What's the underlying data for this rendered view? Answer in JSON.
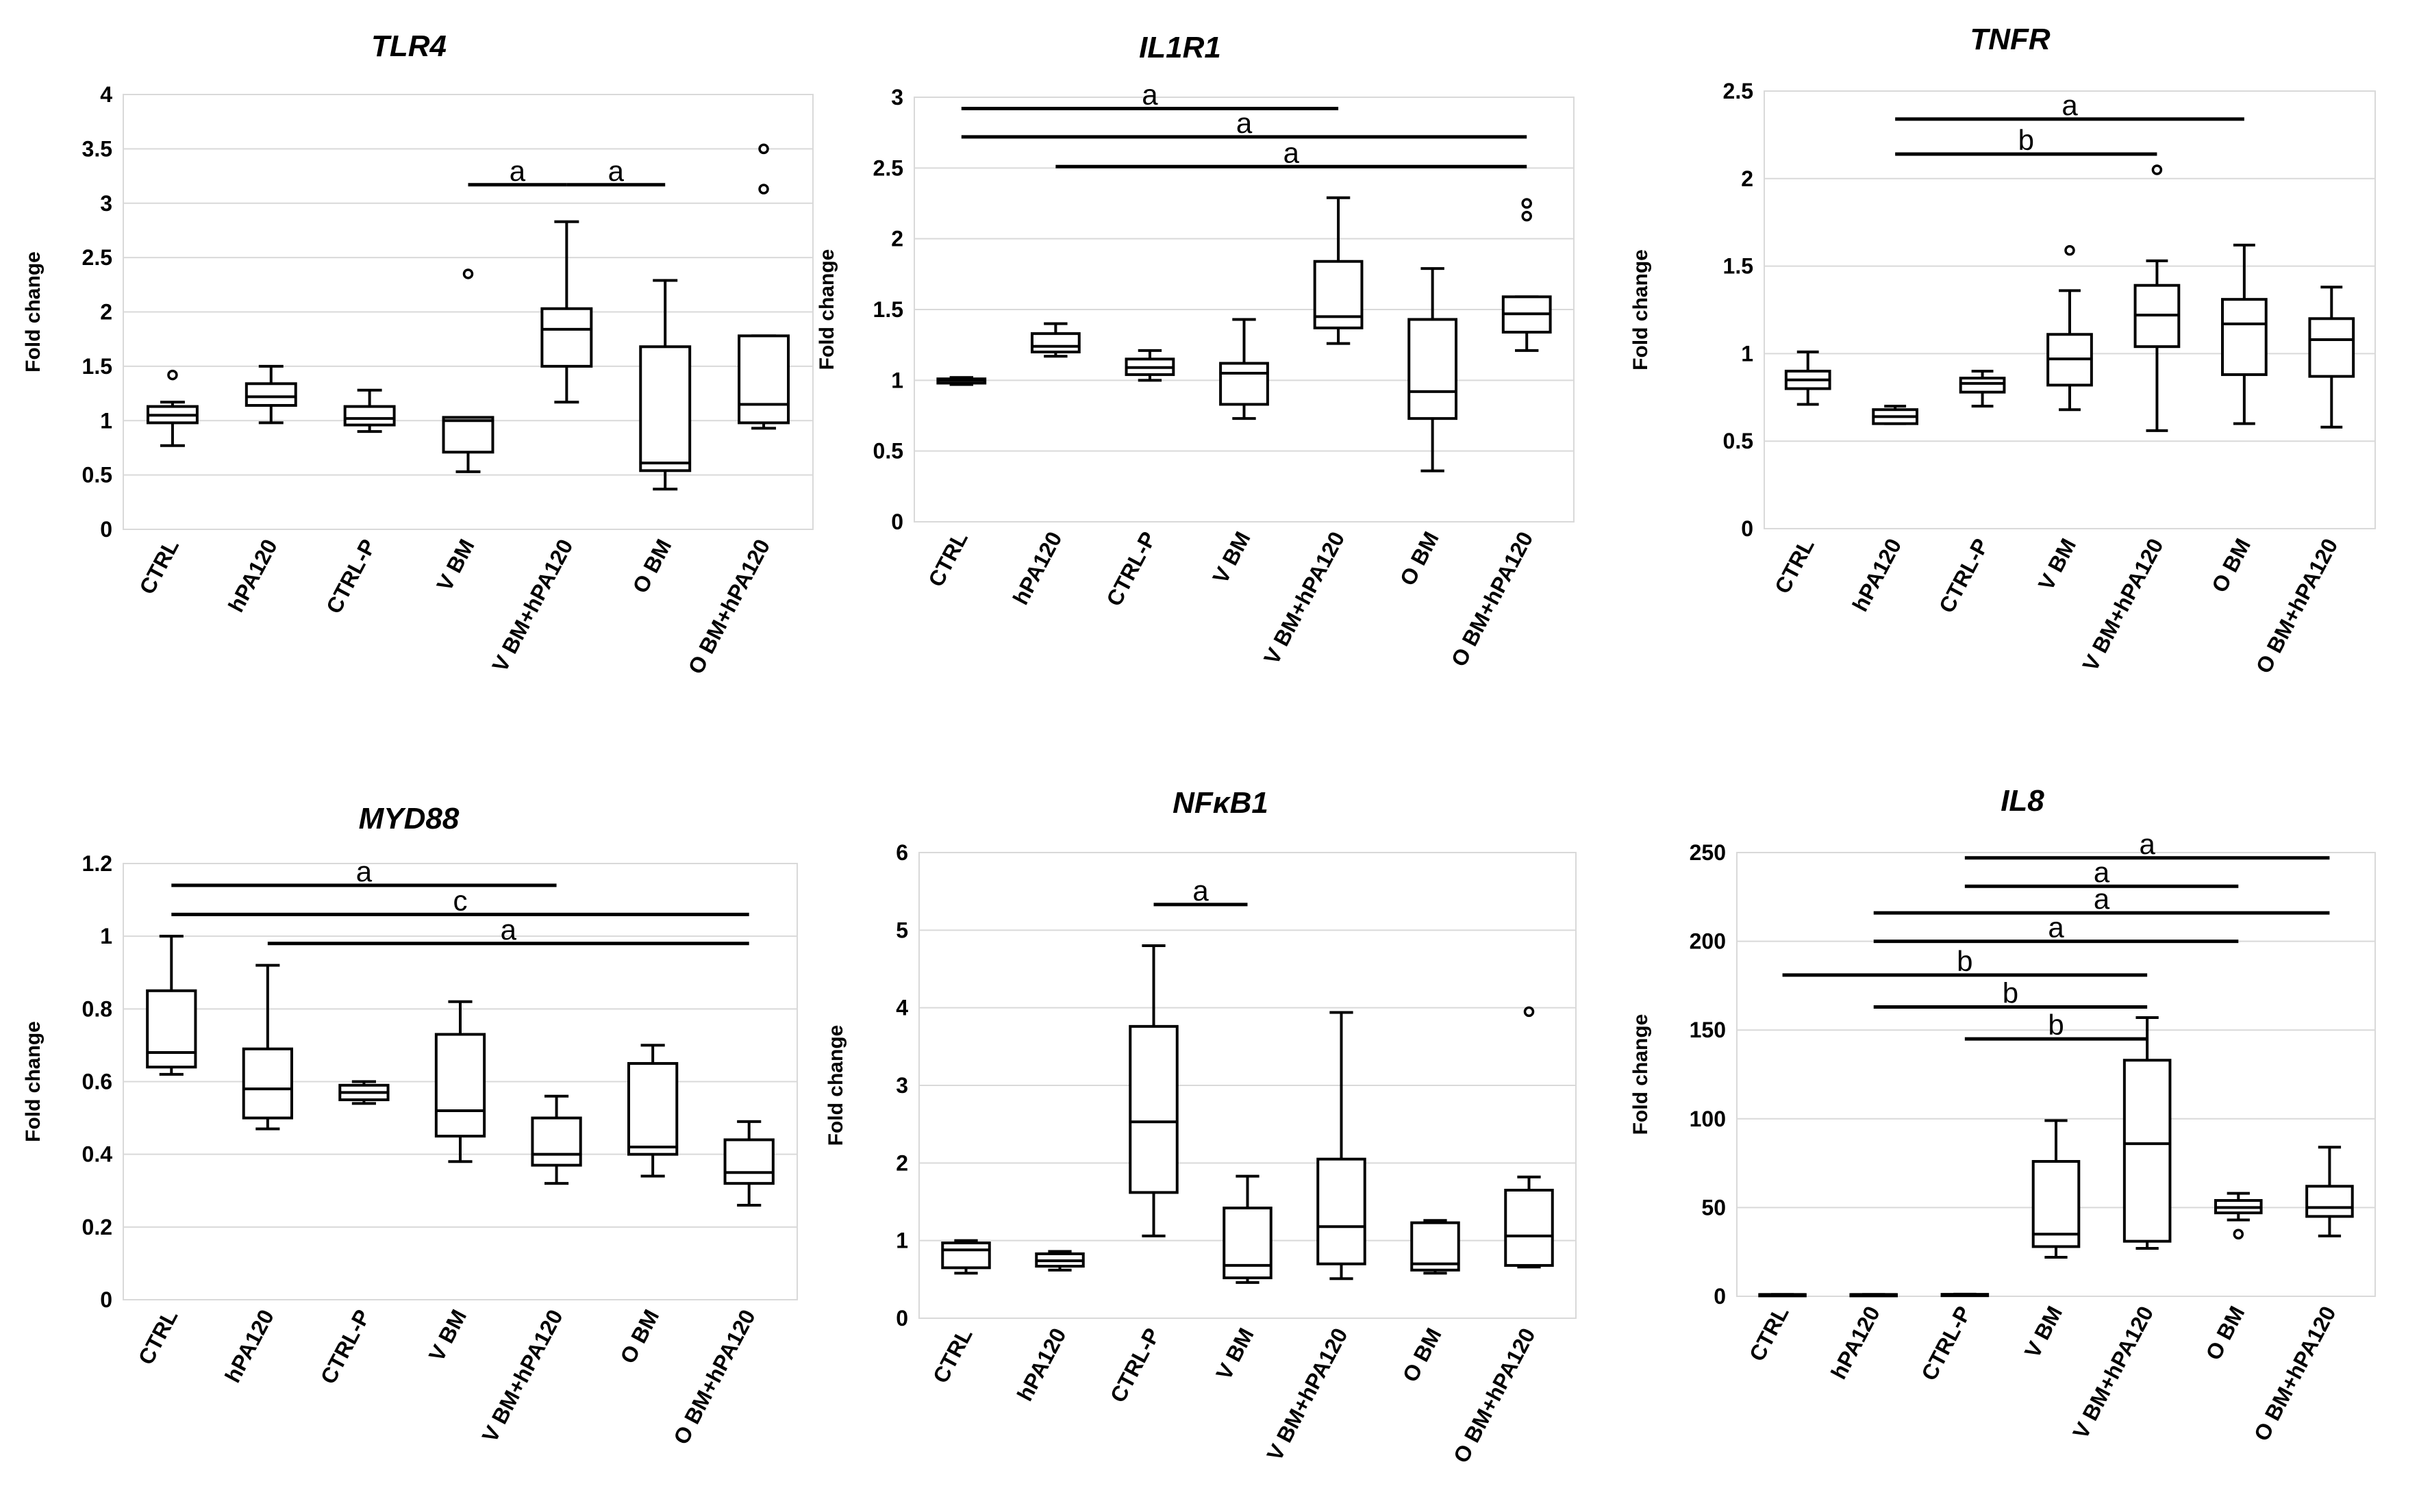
{
  "chart_data": [
    {
      "type": "box",
      "title": "TLR4",
      "ylabel": "Fold change",
      "ylim": [
        0,
        4
      ],
      "yticks": [
        "0",
        "0.5",
        "1",
        "1.5",
        "2",
        "2.5",
        "3",
        "3.5",
        "4"
      ],
      "categories": [
        "CTRL",
        "hPA120",
        "CTRL-P",
        "V BM",
        "V BM+hPA120",
        "O BM",
        "O BM+hPA120"
      ],
      "boxes": [
        {
          "min": 0.77,
          "q1": 0.98,
          "median": 1.05,
          "q3": 1.13,
          "max": 1.17,
          "outliers": [
            1.42
          ]
        },
        {
          "min": 0.98,
          "q1": 1.14,
          "median": 1.22,
          "q3": 1.34,
          "max": 1.5,
          "outliers": []
        },
        {
          "min": 0.9,
          "q1": 0.96,
          "median": 1.02,
          "q3": 1.13,
          "max": 1.28,
          "outliers": []
        },
        {
          "min": 0.53,
          "q1": 0.71,
          "median": 1.0,
          "q3": 1.03,
          "max": 1.03,
          "outliers": [
            2.35
          ]
        },
        {
          "min": 1.17,
          "q1": 1.5,
          "median": 1.84,
          "q3": 2.03,
          "max": 2.83,
          "outliers": []
        },
        {
          "min": 0.37,
          "q1": 0.54,
          "median": 0.61,
          "q3": 1.68,
          "max": 2.29,
          "outliers": []
        },
        {
          "min": 0.93,
          "q1": 0.98,
          "median": 1.15,
          "q3": 1.78,
          "max": 1.78,
          "outliers": [
            3.13,
            3.5
          ]
        }
      ],
      "significance": [
        {
          "from": 3,
          "to": 4,
          "label": "a",
          "y": 3.17
        },
        {
          "from": 4,
          "to": 5,
          "label": "a",
          "y": 3.17
        }
      ]
    },
    {
      "type": "box",
      "title": "IL1R1",
      "ylabel": "Fold change",
      "ylim": [
        0,
        3
      ],
      "yticks": [
        "0",
        "0.5",
        "1",
        "1.5",
        "2",
        "2.5",
        "3"
      ],
      "categories": [
        "CTRL",
        "hPA120",
        "CTRL-P",
        "V BM",
        "V BM+hPA120",
        "O BM",
        "O BM+hPA120"
      ],
      "boxes": [
        {
          "min": 0.97,
          "q1": 0.98,
          "median": 1.0,
          "q3": 1.01,
          "max": 1.02,
          "outliers": []
        },
        {
          "min": 1.17,
          "q1": 1.2,
          "median": 1.24,
          "q3": 1.33,
          "max": 1.4,
          "outliers": []
        },
        {
          "min": 1.0,
          "q1": 1.04,
          "median": 1.09,
          "q3": 1.15,
          "max": 1.21,
          "outliers": []
        },
        {
          "min": 0.73,
          "q1": 0.83,
          "median": 1.05,
          "q3": 1.12,
          "max": 1.43,
          "outliers": []
        },
        {
          "min": 1.26,
          "q1": 1.37,
          "median": 1.45,
          "q3": 1.84,
          "max": 2.29,
          "outliers": []
        },
        {
          "min": 0.36,
          "q1": 0.73,
          "median": 0.92,
          "q3": 1.43,
          "max": 1.79,
          "outliers": []
        },
        {
          "min": 1.21,
          "q1": 1.34,
          "median": 1.47,
          "q3": 1.59,
          "max": 1.59,
          "outliers": [
            2.16,
            2.25
          ]
        }
      ],
      "significance": [
        {
          "from": 0,
          "to": 4,
          "label": "a",
          "y": 2.92
        },
        {
          "from": 0,
          "to": 6,
          "label": "a",
          "y": 2.72
        },
        {
          "from": 1,
          "to": 6,
          "label": "a",
          "y": 2.51
        }
      ]
    },
    {
      "type": "box",
      "title": "TNFR",
      "ylabel": "Fold change",
      "ylim": [
        0,
        2.5
      ],
      "yticks": [
        "0",
        "0.5",
        "1",
        "1.5",
        "2",
        "2.5"
      ],
      "categories": [
        "CTRL",
        "hPA120",
        "CTRL-P",
        "V BM",
        "V BM+hPA120",
        "O BM",
        "O BM+hPA120"
      ],
      "boxes": [
        {
          "min": 0.71,
          "q1": 0.8,
          "median": 0.85,
          "q3": 0.9,
          "max": 1.01,
          "outliers": []
        },
        {
          "min": 0.6,
          "q1": 0.6,
          "median": 0.64,
          "q3": 0.68,
          "max": 0.7,
          "outliers": []
        },
        {
          "min": 0.7,
          "q1": 0.78,
          "median": 0.83,
          "q3": 0.86,
          "max": 0.9,
          "outliers": []
        },
        {
          "min": 0.68,
          "q1": 0.82,
          "median": 0.97,
          "q3": 1.11,
          "max": 1.36,
          "outliers": [
            1.59
          ]
        },
        {
          "min": 0.56,
          "q1": 1.04,
          "median": 1.22,
          "q3": 1.39,
          "max": 1.53,
          "outliers": [
            2.05
          ]
        },
        {
          "min": 0.6,
          "q1": 0.88,
          "median": 1.17,
          "q3": 1.31,
          "max": 1.62,
          "outliers": []
        },
        {
          "min": 0.58,
          "q1": 0.87,
          "median": 1.08,
          "q3": 1.2,
          "max": 1.38,
          "outliers": []
        }
      ],
      "significance": [
        {
          "from": 1,
          "to": 5,
          "label": "a",
          "y": 2.34
        },
        {
          "from": 1,
          "to": 4,
          "label": "b",
          "y": 2.14
        }
      ]
    },
    {
      "type": "box",
      "title": "MYD88",
      "ylabel": "Fold change",
      "ylim": [
        0,
        1.2
      ],
      "yticks": [
        "0",
        "0.2",
        "0.4",
        "0.6",
        "0.8",
        "1",
        "1.2"
      ],
      "categories": [
        "CTRL",
        "hPA120",
        "CTRL-P",
        "V BM",
        "V BM+hPA120",
        "O BM",
        "O BM+hPA120"
      ],
      "boxes": [
        {
          "min": 0.62,
          "q1": 0.64,
          "median": 0.68,
          "q3": 0.85,
          "max": 1.0,
          "outliers": []
        },
        {
          "min": 0.47,
          "q1": 0.5,
          "median": 0.58,
          "q3": 0.69,
          "max": 0.92,
          "outliers": []
        },
        {
          "min": 0.54,
          "q1": 0.55,
          "median": 0.57,
          "q3": 0.59,
          "max": 0.6,
          "outliers": []
        },
        {
          "min": 0.38,
          "q1": 0.45,
          "median": 0.52,
          "q3": 0.73,
          "max": 0.82,
          "outliers": []
        },
        {
          "min": 0.32,
          "q1": 0.37,
          "median": 0.4,
          "q3": 0.5,
          "max": 0.56,
          "outliers": []
        },
        {
          "min": 0.34,
          "q1": 0.4,
          "median": 0.42,
          "q3": 0.65,
          "max": 0.7,
          "outliers": []
        },
        {
          "min": 0.26,
          "q1": 0.32,
          "median": 0.35,
          "q3": 0.44,
          "max": 0.49,
          "outliers": []
        }
      ],
      "significance": [
        {
          "from": 0,
          "to": 4,
          "label": "a",
          "y": 1.14
        },
        {
          "from": 0,
          "to": 6,
          "label": "c",
          "y": 1.06
        },
        {
          "from": 1,
          "to": 6,
          "label": "a",
          "y": 0.98
        }
      ]
    },
    {
      "type": "box",
      "title": "NFκB1",
      "ylabel": "Fold change",
      "ylim": [
        0,
        6
      ],
      "yticks": [
        "0",
        "1",
        "2",
        "3",
        "4",
        "5",
        "6"
      ],
      "categories": [
        "CTRL",
        "hPA120",
        "CTRL-P",
        "V BM",
        "V BM+hPA120",
        "O BM",
        "O BM+hPA120"
      ],
      "boxes": [
        {
          "min": 0.58,
          "q1": 0.65,
          "median": 0.88,
          "q3": 0.97,
          "max": 1.0,
          "outliers": []
        },
        {
          "min": 0.62,
          "q1": 0.67,
          "median": 0.74,
          "q3": 0.83,
          "max": 0.86,
          "outliers": []
        },
        {
          "min": 1.06,
          "q1": 1.62,
          "median": 2.53,
          "q3": 3.76,
          "max": 4.8,
          "outliers": []
        },
        {
          "min": 0.46,
          "q1": 0.52,
          "median": 0.68,
          "q3": 1.42,
          "max": 1.83,
          "outliers": []
        },
        {
          "min": 0.51,
          "q1": 0.7,
          "median": 1.18,
          "q3": 2.05,
          "max": 3.94,
          "outliers": []
        },
        {
          "min": 0.58,
          "q1": 0.62,
          "median": 0.7,
          "q3": 1.23,
          "max": 1.26,
          "outliers": []
        },
        {
          "min": 0.66,
          "q1": 0.68,
          "median": 1.06,
          "q3": 1.65,
          "max": 1.82,
          "outliers": [
            3.95
          ]
        }
      ],
      "significance": [
        {
          "from": 2,
          "to": 3,
          "label": "a",
          "y": 5.33
        }
      ]
    },
    {
      "type": "box",
      "title": "IL8",
      "ylabel": "Fold change",
      "ylim": [
        0,
        250
      ],
      "yticks": [
        "0",
        "50",
        "100",
        "150",
        "200",
        "250"
      ],
      "categories": [
        "CTRL",
        "hPA120",
        "CTRL-P",
        "V BM",
        "V BM+hPA120",
        "O BM",
        "O BM+hPA120"
      ],
      "boxes": [
        {
          "min": 1,
          "q1": 1,
          "median": 1,
          "q3": 1,
          "max": 1,
          "outliers": []
        },
        {
          "min": 1,
          "q1": 1,
          "median": 1,
          "q3": 1,
          "max": 1,
          "outliers": []
        },
        {
          "min": 0.8,
          "q1": 0.9,
          "median": 1,
          "q3": 1.1,
          "max": 1.2,
          "outliers": []
        },
        {
          "min": 22,
          "q1": 28,
          "median": 35,
          "q3": 76,
          "max": 99,
          "outliers": []
        },
        {
          "min": 27,
          "q1": 31,
          "median": 86,
          "q3": 133,
          "max": 157,
          "outliers": []
        },
        {
          "min": 43,
          "q1": 47,
          "median": 50,
          "q3": 54,
          "max": 58,
          "outliers": [
            35
          ]
        },
        {
          "min": 34,
          "q1": 45,
          "median": 50,
          "q3": 62,
          "max": 84,
          "outliers": []
        }
      ],
      "significance": [
        {
          "from": 2,
          "to": 6,
          "label": "a",
          "y": 247
        },
        {
          "from": 2,
          "to": 5,
          "label": "a",
          "y": 231
        },
        {
          "from": 1,
          "to": 6,
          "label": "a",
          "y": 216
        },
        {
          "from": 1,
          "to": 5,
          "label": "a",
          "y": 200
        },
        {
          "from": 0,
          "to": 4,
          "label": "b",
          "y": 181
        },
        {
          "from": 1,
          "to": 4,
          "label": "b",
          "y": 163
        },
        {
          "from": 2,
          "to": 4,
          "label": "b",
          "y": 145
        }
      ]
    }
  ]
}
